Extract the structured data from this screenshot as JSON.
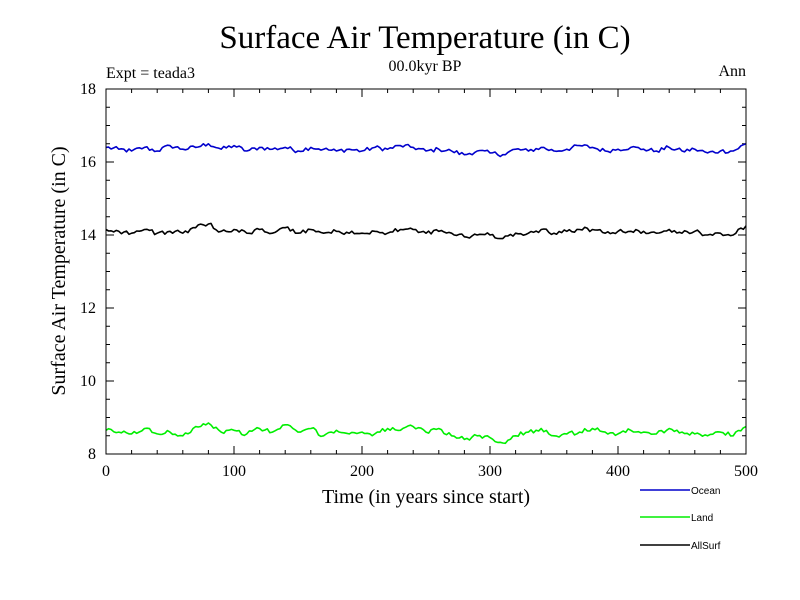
{
  "chart_data": {
    "type": "line",
    "title": "Surface Air Temperature (in C)",
    "subtitle": "00.0kyr BP",
    "left_note": "Expt = teada3",
    "right_note": "Ann",
    "xlabel": "Time (in years since start)",
    "ylabel": "Surface Air Temperature (in C)",
    "xlim": [
      0,
      500
    ],
    "ylim": [
      8,
      18
    ],
    "xticks": [
      0,
      100,
      200,
      300,
      400,
      500
    ],
    "yticks": [
      8,
      10,
      12,
      14,
      16,
      18
    ],
    "grid": false,
    "legend_position": "bottom-right, outside plot",
    "series": [
      {
        "name": "Ocean",
        "color": "#0000cc",
        "x": [
          0,
          10,
          20,
          30,
          40,
          50,
          60,
          70,
          80,
          90,
          100,
          110,
          120,
          130,
          140,
          150,
          160,
          170,
          180,
          190,
          200,
          210,
          220,
          230,
          240,
          250,
          260,
          270,
          280,
          290,
          300,
          310,
          320,
          330,
          340,
          350,
          360,
          370,
          380,
          390,
          400,
          410,
          420,
          430,
          440,
          450,
          460,
          470,
          480,
          490,
          500
        ],
        "values": [
          16.4,
          16.35,
          16.3,
          16.4,
          16.3,
          16.45,
          16.35,
          16.4,
          16.5,
          16.35,
          16.45,
          16.3,
          16.4,
          16.35,
          16.4,
          16.3,
          16.4,
          16.35,
          16.3,
          16.35,
          16.3,
          16.4,
          16.35,
          16.45,
          16.4,
          16.3,
          16.35,
          16.3,
          16.2,
          16.3,
          16.25,
          16.2,
          16.35,
          16.3,
          16.4,
          16.3,
          16.35,
          16.45,
          16.4,
          16.3,
          16.35,
          16.4,
          16.35,
          16.3,
          16.4,
          16.3,
          16.35,
          16.25,
          16.3,
          16.3,
          16.5
        ]
      },
      {
        "name": "Land",
        "color": "#00ee00",
        "x": [
          0,
          10,
          20,
          30,
          40,
          50,
          60,
          70,
          80,
          90,
          100,
          110,
          120,
          130,
          140,
          150,
          160,
          170,
          180,
          190,
          200,
          210,
          220,
          230,
          240,
          250,
          260,
          270,
          280,
          290,
          300,
          310,
          320,
          330,
          340,
          350,
          360,
          370,
          380,
          390,
          400,
          410,
          420,
          430,
          440,
          450,
          460,
          470,
          480,
          490,
          500
        ],
        "values": [
          8.65,
          8.6,
          8.55,
          8.7,
          8.55,
          8.6,
          8.5,
          8.75,
          8.85,
          8.6,
          8.65,
          8.55,
          8.7,
          8.6,
          8.8,
          8.6,
          8.7,
          8.5,
          8.65,
          8.55,
          8.6,
          8.55,
          8.7,
          8.65,
          8.75,
          8.6,
          8.7,
          8.5,
          8.4,
          8.5,
          8.45,
          8.3,
          8.5,
          8.6,
          8.7,
          8.5,
          8.55,
          8.6,
          8.7,
          8.6,
          8.55,
          8.65,
          8.6,
          8.55,
          8.7,
          8.6,
          8.55,
          8.5,
          8.6,
          8.5,
          8.75
        ]
      },
      {
        "name": "AllSurf",
        "color": "#000000",
        "x": [
          0,
          10,
          20,
          30,
          40,
          50,
          60,
          70,
          80,
          90,
          100,
          110,
          120,
          130,
          140,
          150,
          160,
          170,
          180,
          190,
          200,
          210,
          220,
          230,
          240,
          250,
          260,
          270,
          280,
          290,
          300,
          310,
          320,
          330,
          340,
          350,
          360,
          370,
          380,
          390,
          400,
          410,
          420,
          430,
          440,
          450,
          460,
          470,
          480,
          490,
          500
        ],
        "values": [
          14.15,
          14.1,
          14.05,
          14.15,
          14.05,
          14.1,
          14.05,
          14.2,
          14.3,
          14.1,
          14.15,
          14.05,
          14.15,
          14.05,
          14.2,
          14.05,
          14.15,
          14.05,
          14.1,
          14.05,
          14.05,
          14.1,
          14.05,
          14.15,
          14.15,
          14.05,
          14.1,
          14.05,
          13.95,
          14.0,
          14.0,
          13.9,
          14.05,
          14.05,
          14.15,
          14.05,
          14.1,
          14.15,
          14.15,
          14.05,
          14.1,
          14.1,
          14.1,
          14.05,
          14.15,
          14.05,
          14.1,
          14.0,
          14.05,
          14.0,
          14.25
        ]
      }
    ]
  }
}
